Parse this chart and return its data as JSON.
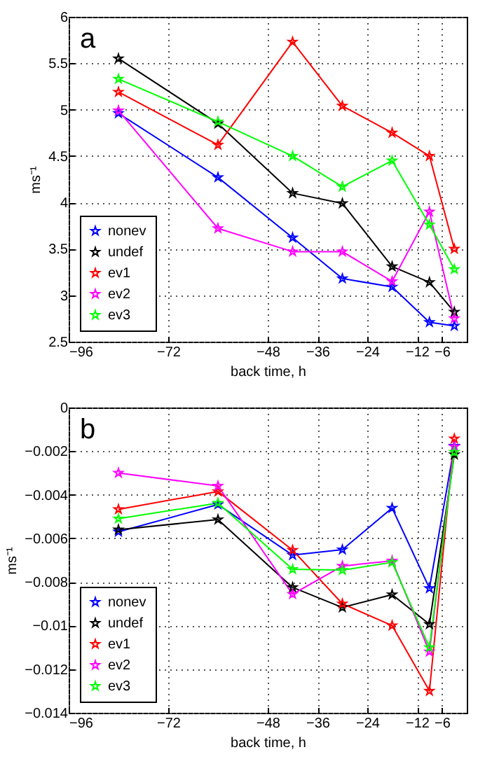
{
  "chart_data": [
    {
      "type": "line",
      "title": "a",
      "xlabel": "back time, h",
      "ylabel": "ms⁻¹",
      "x": [
        -84,
        -60,
        -42,
        -30,
        -18,
        -9,
        -3
      ],
      "xlim": [
        -96,
        0
      ],
      "xticks": [
        {
          "value": -96,
          "label": "−96"
        },
        {
          "value": -72,
          "label": "−72"
        },
        {
          "value": -48,
          "label": "−48"
        },
        {
          "value": -36,
          "label": "−36"
        },
        {
          "value": -24,
          "label": "−24"
        },
        {
          "value": -12,
          "label": "−12"
        },
        {
          "value": -6,
          "label": "−6"
        }
      ],
      "ylim": [
        2.5,
        6
      ],
      "yticks": [
        2.5,
        3,
        3.5,
        4,
        4.5,
        5,
        5.5,
        6
      ],
      "grid": true,
      "legend": "bottom left",
      "marker": "star",
      "line_style": "solid",
      "series": [
        {
          "name": "nonev",
          "color": "#0000ff",
          "values": [
            4.96,
            4.27,
            3.62,
            3.18,
            3.09,
            2.71,
            2.67
          ]
        },
        {
          "name": "undef",
          "color": "#000000",
          "values": [
            5.55,
            4.85,
            4.1,
            3.99,
            3.31,
            3.14,
            2.82
          ]
        },
        {
          "name": "ev1",
          "color": "#ff0000",
          "values": [
            5.19,
            4.62,
            5.73,
            5.04,
            4.75,
            4.5,
            3.5
          ]
        },
        {
          "name": "ev2",
          "color": "#ff00ff",
          "values": [
            4.99,
            3.72,
            3.47,
            3.47,
            3.15,
            3.9,
            2.75
          ]
        },
        {
          "name": "ev3",
          "color": "#00ff00",
          "values": [
            5.33,
            4.87,
            4.5,
            4.17,
            4.45,
            3.76,
            3.28
          ]
        }
      ]
    },
    {
      "type": "line",
      "title": "b",
      "xlabel": "back time, h",
      "ylabel": "ms⁻¹",
      "x": [
        -84,
        -60,
        -42,
        -30,
        -18,
        -9,
        -3
      ],
      "xlim": [
        -96,
        0
      ],
      "xticks": [
        {
          "value": -96,
          "label": "−96"
        },
        {
          "value": -72,
          "label": "−72"
        },
        {
          "value": -48,
          "label": "−48"
        },
        {
          "value": -36,
          "label": "−36"
        },
        {
          "value": -24,
          "label": "−24"
        },
        {
          "value": -12,
          "label": "−12"
        },
        {
          "value": -6,
          "label": "−6"
        }
      ],
      "ylim": [
        -0.014,
        0
      ],
      "yticks": [
        {
          "value": -0.014,
          "label": "−0.014"
        },
        {
          "value": -0.012,
          "label": "−0.012"
        },
        {
          "value": -0.01,
          "label": "−0.01"
        },
        {
          "value": -0.008,
          "label": "−0.008"
        },
        {
          "value": -0.006,
          "label": "−0.006"
        },
        {
          "value": -0.004,
          "label": "−0.004"
        },
        {
          "value": -0.002,
          "label": "−0.002"
        },
        0
      ],
      "grid": true,
      "legend": "bottom left",
      "marker": "star",
      "line_style": "solid",
      "series": [
        {
          "name": "nonev",
          "color": "#0000ff",
          "values": [
            -0.0057,
            -0.00445,
            -0.00677,
            -0.00652,
            -0.00461,
            -0.00829,
            -0.00177
          ]
        },
        {
          "name": "undef",
          "color": "#000000",
          "values": [
            -0.0056,
            -0.00514,
            -0.00825,
            -0.00917,
            -0.00858,
            -0.00994,
            -0.00216
          ]
        },
        {
          "name": "ev1",
          "color": "#ff0000",
          "values": [
            -0.00467,
            -0.00385,
            -0.00654,
            -0.009,
            -0.01,
            -0.013,
            -0.00143
          ]
        },
        {
          "name": "ev2",
          "color": "#ff00ff",
          "values": [
            -0.003,
            -0.0036,
            -0.00856,
            -0.00727,
            -0.00703,
            -0.0112,
            -0.0018
          ]
        },
        {
          "name": "ev3",
          "color": "#00ff00",
          "values": [
            -0.0051,
            -0.00438,
            -0.00742,
            -0.00746,
            -0.0071,
            -0.011,
            -0.00204
          ]
        }
      ]
    }
  ]
}
